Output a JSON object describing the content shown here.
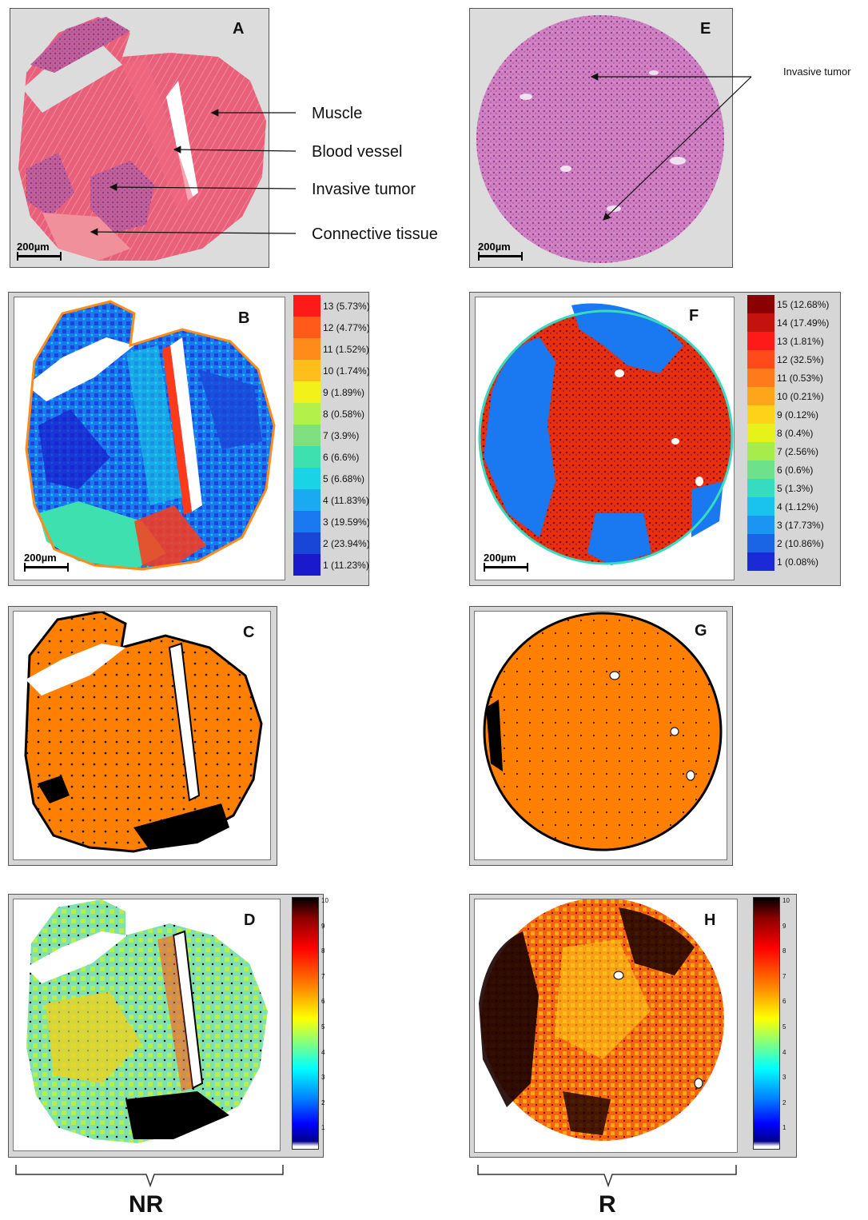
{
  "panels": {
    "A": {
      "letter": "A",
      "scale": "200µm"
    },
    "B": {
      "letter": "B",
      "scale": "200µm",
      "legend": [
        {
          "label": "13 (5.73%)",
          "color": "#ff1a1a"
        },
        {
          "label": "12 (4.77%)",
          "color": "#ff5a1a"
        },
        {
          "label": "11 (1.52%)",
          "color": "#ff8c1a"
        },
        {
          "label": "10 (1.74%)",
          "color": "#ffbe1a"
        },
        {
          "label": "9 (1.89%)",
          "color": "#f2f21a"
        },
        {
          "label": "8 (0.58%)",
          "color": "#b4f04a"
        },
        {
          "label": "7 (3.9%)",
          "color": "#7fe07f"
        },
        {
          "label": "6 (6.6%)",
          "color": "#3fe0b0"
        },
        {
          "label": "5 (6.68%)",
          "color": "#1ad4e6"
        },
        {
          "label": "4 (11.83%)",
          "color": "#1aaaf2"
        },
        {
          "label": "3 (19.59%)",
          "color": "#1a78f0"
        },
        {
          "label": "2 (23.94%)",
          "color": "#1a46d8"
        },
        {
          "label": "1 (11.23%)",
          "color": "#1a1acc"
        }
      ]
    },
    "C": {
      "letter": "C"
    },
    "D": {
      "letter": "D",
      "colorbar_ticks": [
        "10",
        "9",
        "8",
        "7",
        "6",
        "5",
        "4",
        "3",
        "2",
        "1"
      ]
    },
    "E": {
      "letter": "E",
      "scale": "200µm"
    },
    "F": {
      "letter": "F",
      "scale": "200µm",
      "legend": [
        {
          "label": "15 (12.68%)",
          "color": "#8b0000"
        },
        {
          "label": "14 (17.49%)",
          "color": "#c4120f"
        },
        {
          "label": "13 (1.81%)",
          "color": "#ff1a1a"
        },
        {
          "label": "12 (32.5%)",
          "color": "#ff4a1a"
        },
        {
          "label": "11 (0.53%)",
          "color": "#ff7a1a"
        },
        {
          "label": "10 (0.21%)",
          "color": "#ffa51a"
        },
        {
          "label": "9 (0.12%)",
          "color": "#ffd21a"
        },
        {
          "label": "8 (0.4%)",
          "color": "#e6f21a"
        },
        {
          "label": "7 (2.56%)",
          "color": "#a6ec4a"
        },
        {
          "label": "6 (0.6%)",
          "color": "#6ee28a"
        },
        {
          "label": "5 (1.3%)",
          "color": "#35dcc0"
        },
        {
          "label": "4 (1.12%)",
          "color": "#1ac2ee"
        },
        {
          "label": "3 (17.73%)",
          "color": "#1a96f2"
        },
        {
          "label": "2 (10.86%)",
          "color": "#1a64e6"
        },
        {
          "label": "1 (0.08%)",
          "color": "#1a2ad6"
        }
      ]
    },
    "G": {
      "letter": "G"
    },
    "H": {
      "letter": "H",
      "colorbar_ticks": [
        "10",
        "9",
        "8",
        "7",
        "6",
        "5",
        "4",
        "3",
        "2",
        "1"
      ]
    }
  },
  "annotations": {
    "muscle": "Muscle",
    "blood_vessel": "Blood vessel",
    "invasive_tumor": "Invasive tumor",
    "connective_tissue": "Connective tissue",
    "invasive_tumor_right": "Invasive tumor"
  },
  "group_labels": {
    "left": "NR",
    "right": "R"
  },
  "colors": {
    "he_pink": "#e0607a",
    "he_purple": "#c77ab8",
    "cluster_orange": "#ff8000",
    "deep_blue": "#1a46d8",
    "red": "#d8201a"
  }
}
